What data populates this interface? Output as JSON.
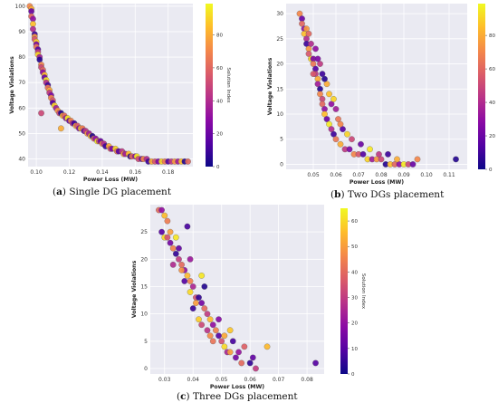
{
  "colors": {
    "panel_bg": "#eaeaf2",
    "grid": "#ffffff",
    "colormap": [
      "#0d0887",
      "#5302a3",
      "#8b0aa5",
      "#b83289",
      "#db5c68",
      "#f48849",
      "#febd2a",
      "#f0f921"
    ],
    "marker_edge": "#555555"
  },
  "captions": [
    {
      "letter": "a",
      "text": "Single DG placement"
    },
    {
      "letter": "b",
      "text": "Two DGs placement"
    },
    {
      "letter": "c",
      "text": "Three DGs placement"
    }
  ],
  "chart_data": [
    {
      "type": "scatter",
      "title": "",
      "xlabel": "Power Loss (MW)",
      "ylabel": "Voltage Violations",
      "colorbar_label": "Solution Index",
      "xlim": [
        0.095,
        0.195
      ],
      "ylim": [
        37,
        101
      ],
      "xticks": [
        0.1,
        0.12,
        0.14,
        0.16,
        0.18
      ],
      "xtick_labels": [
        "0.10",
        "0.12",
        "0.14",
        "0.16",
        "0.18"
      ],
      "yticks": [
        40,
        50,
        60,
        70,
        80,
        90,
        100
      ],
      "yticks_labels": [
        "40",
        "50",
        "60",
        "70",
        "80",
        "90",
        "100"
      ],
      "cbar_ticks": [
        0,
        20,
        40,
        60,
        80
      ],
      "cbar_max": 99,
      "grid": true,
      "points": [
        [
          0.096,
          100,
          70
        ],
        [
          0.097,
          99,
          80
        ],
        [
          0.097,
          98,
          20
        ],
        [
          0.097,
          96,
          60
        ],
        [
          0.098,
          95,
          30
        ],
        [
          0.098,
          93,
          85
        ],
        [
          0.098,
          91,
          40
        ],
        [
          0.099,
          89,
          10
        ],
        [
          0.099,
          88,
          75
        ],
        [
          0.099,
          87,
          55
        ],
        [
          0.1,
          86,
          88
        ],
        [
          0.1,
          85,
          25
        ],
        [
          0.1,
          84,
          65
        ],
        [
          0.101,
          83,
          15
        ],
        [
          0.101,
          82,
          45
        ],
        [
          0.101,
          81,
          90
        ],
        [
          0.102,
          80,
          35
        ],
        [
          0.102,
          79,
          5
        ],
        [
          0.103,
          77,
          70
        ],
        [
          0.103,
          76,
          50
        ],
        [
          0.104,
          75,
          60
        ],
        [
          0.104,
          74,
          30
        ],
        [
          0.105,
          73,
          85
        ],
        [
          0.105,
          72,
          20
        ],
        [
          0.106,
          71,
          95
        ],
        [
          0.106,
          70,
          40
        ],
        [
          0.107,
          69,
          10
        ],
        [
          0.107,
          68,
          65
        ],
        [
          0.108,
          67,
          80
        ],
        [
          0.108,
          66,
          45
        ],
        [
          0.109,
          65,
          25
        ],
        [
          0.109,
          64,
          70
        ],
        [
          0.11,
          63,
          55
        ],
        [
          0.11,
          62,
          15
        ],
        [
          0.111,
          61,
          90
        ],
        [
          0.112,
          60,
          35
        ],
        [
          0.113,
          59,
          75
        ],
        [
          0.114,
          58,
          50
        ],
        [
          0.115,
          58,
          5
        ],
        [
          0.116,
          57,
          85
        ],
        [
          0.117,
          57,
          60
        ],
        [
          0.118,
          56,
          30
        ],
        [
          0.119,
          56,
          95
        ],
        [
          0.12,
          55,
          20
        ],
        [
          0.121,
          55,
          70
        ],
        [
          0.122,
          54,
          40
        ],
        [
          0.123,
          54,
          10
        ],
        [
          0.124,
          53,
          80
        ],
        [
          0.125,
          53,
          55
        ],
        [
          0.126,
          52,
          25
        ],
        [
          0.127,
          52,
          90
        ],
        [
          0.128,
          52,
          65
        ],
        [
          0.129,
          51,
          15
        ],
        [
          0.13,
          51,
          45
        ],
        [
          0.131,
          50,
          75
        ],
        [
          0.132,
          50,
          35
        ],
        [
          0.133,
          49,
          85
        ],
        [
          0.134,
          49,
          5
        ],
        [
          0.135,
          48,
          60
        ],
        [
          0.136,
          48,
          30
        ],
        [
          0.137,
          47,
          95
        ],
        [
          0.138,
          47,
          50
        ],
        [
          0.139,
          47,
          20
        ],
        [
          0.14,
          46,
          70
        ],
        [
          0.141,
          46,
          40
        ],
        [
          0.142,
          45,
          10
        ],
        [
          0.144,
          45,
          80
        ],
        [
          0.145,
          44,
          55
        ],
        [
          0.146,
          44,
          25
        ],
        [
          0.148,
          44,
          90
        ],
        [
          0.149,
          43,
          65
        ],
        [
          0.15,
          43,
          15
        ],
        [
          0.152,
          43,
          45
        ],
        [
          0.153,
          42,
          75
        ],
        [
          0.154,
          42,
          35
        ],
        [
          0.156,
          42,
          85
        ],
        [
          0.157,
          41,
          5
        ],
        [
          0.158,
          41,
          60
        ],
        [
          0.16,
          41,
          30
        ],
        [
          0.161,
          41,
          95
        ],
        [
          0.162,
          40,
          50
        ],
        [
          0.164,
          40,
          20
        ],
        [
          0.165,
          40,
          70
        ],
        [
          0.167,
          40,
          40
        ],
        [
          0.168,
          39,
          10
        ],
        [
          0.17,
          39,
          80
        ],
        [
          0.172,
          39,
          55
        ],
        [
          0.174,
          39,
          25
        ],
        [
          0.176,
          39,
          90
        ],
        [
          0.178,
          39,
          65
        ],
        [
          0.18,
          39,
          15
        ],
        [
          0.182,
          39,
          45
        ],
        [
          0.184,
          39,
          75
        ],
        [
          0.186,
          39,
          35
        ],
        [
          0.188,
          39,
          85
        ],
        [
          0.19,
          39,
          5
        ],
        [
          0.192,
          39,
          60
        ],
        [
          0.103,
          58,
          50
        ],
        [
          0.115,
          52,
          80
        ]
      ]
    },
    {
      "type": "scatter",
      "title": "",
      "xlabel": "Power Loss (MW)",
      "ylabel": "Voltage Violations",
      "colorbar_label": "Solution Index",
      "xlim": [
        0.038,
        0.118
      ],
      "ylim": [
        -1,
        32
      ],
      "xticks": [
        0.05,
        0.06,
        0.07,
        0.08,
        0.09,
        0.1,
        0.11
      ],
      "xtick_labels": [
        "0.05",
        "0.06",
        "0.07",
        "0.08",
        "0.09",
        "0.10",
        "0.11"
      ],
      "yticks": [
        0,
        5,
        10,
        15,
        20,
        25,
        30
      ],
      "yticks_labels": [
        "0",
        "5",
        "10",
        "15",
        "20",
        "25",
        "30"
      ],
      "cbar_ticks": [
        0,
        20,
        40,
        60,
        80
      ],
      "cbar_max": 99,
      "grid": true,
      "points": [
        [
          0.044,
          30,
          70
        ],
        [
          0.045,
          29,
          20
        ],
        [
          0.045,
          28,
          60
        ],
        [
          0.046,
          27,
          30
        ],
        [
          0.046,
          26,
          85
        ],
        [
          0.047,
          25,
          40
        ],
        [
          0.047,
          24,
          10
        ],
        [
          0.048,
          23,
          75
        ],
        [
          0.048,
          22,
          55
        ],
        [
          0.049,
          21,
          90
        ],
        [
          0.05,
          21,
          25
        ],
        [
          0.05,
          20,
          65
        ],
        [
          0.051,
          19,
          15
        ],
        [
          0.051,
          18,
          45
        ],
        [
          0.052,
          17,
          80
        ],
        [
          0.052,
          16,
          35
        ],
        [
          0.053,
          15,
          5
        ],
        [
          0.053,
          14,
          70
        ],
        [
          0.054,
          13,
          50
        ],
        [
          0.054,
          12,
          60
        ],
        [
          0.055,
          11,
          30
        ],
        [
          0.055,
          10,
          85
        ],
        [
          0.056,
          9,
          20
        ],
        [
          0.057,
          8,
          95
        ],
        [
          0.058,
          7,
          40
        ],
        [
          0.059,
          6,
          10
        ],
        [
          0.06,
          5,
          65
        ],
        [
          0.062,
          4,
          80
        ],
        [
          0.064,
          3,
          45
        ],
        [
          0.066,
          3,
          25
        ],
        [
          0.068,
          2,
          70
        ],
        [
          0.07,
          2,
          55
        ],
        [
          0.072,
          2,
          15
        ],
        [
          0.074,
          1,
          90
        ],
        [
          0.076,
          1,
          35
        ],
        [
          0.078,
          1,
          75
        ],
        [
          0.08,
          1,
          50
        ],
        [
          0.082,
          0,
          5
        ],
        [
          0.084,
          0,
          85
        ],
        [
          0.086,
          0,
          60
        ],
        [
          0.088,
          0,
          30
        ],
        [
          0.09,
          0,
          95
        ],
        [
          0.092,
          0,
          50
        ],
        [
          0.094,
          0,
          20
        ],
        [
          0.096,
          1,
          70
        ],
        [
          0.113,
          1,
          5
        ],
        [
          0.053,
          20,
          45
        ],
        [
          0.056,
          16,
          80
        ],
        [
          0.058,
          12,
          30
        ],
        [
          0.061,
          9,
          65
        ],
        [
          0.063,
          7,
          15
        ],
        [
          0.065,
          6,
          90
        ],
        [
          0.049,
          24,
          40
        ],
        [
          0.047,
          27,
          75
        ],
        [
          0.05,
          18,
          55
        ],
        [
          0.052,
          21,
          25
        ],
        [
          0.054,
          18,
          10
        ],
        [
          0.057,
          14,
          85
        ],
        [
          0.06,
          11,
          35
        ],
        [
          0.062,
          8,
          70
        ],
        [
          0.067,
          5,
          50
        ],
        [
          0.071,
          4,
          20
        ],
        [
          0.075,
          3,
          95
        ],
        [
          0.079,
          2,
          45
        ],
        [
          0.083,
          2,
          10
        ],
        [
          0.087,
          1,
          80
        ],
        [
          0.048,
          26,
          60
        ],
        [
          0.051,
          23,
          30
        ],
        [
          0.055,
          17,
          5
        ],
        [
          0.059,
          13,
          90
        ]
      ]
    },
    {
      "type": "scatter",
      "title": "",
      "xlabel": "Power Loss (MW)",
      "ylabel": "Voltage Violations",
      "colorbar_label": "Solution Index",
      "xlim": [
        0.025,
        0.086
      ],
      "ylim": [
        -1,
        30
      ],
      "xticks": [
        0.03,
        0.04,
        0.05,
        0.06,
        0.07,
        0.08
      ],
      "xtick_labels": [
        "0.03",
        "0.04",
        "0.05",
        "0.06",
        "0.07",
        "0.08"
      ],
      "yticks": [
        0,
        5,
        10,
        15,
        20,
        25
      ],
      "yticks_labels": [
        "0",
        "5",
        "10",
        "15",
        "20",
        "25"
      ],
      "cbar_ticks": [
        0,
        10,
        20,
        30,
        40,
        50,
        60
      ],
      "cbar_max": 65,
      "grid": true,
      "points": [
        [
          0.028,
          29,
          40
        ],
        [
          0.029,
          29,
          20
        ],
        [
          0.03,
          28,
          55
        ],
        [
          0.029,
          25,
          10
        ],
        [
          0.03,
          24,
          60
        ],
        [
          0.031,
          24,
          35
        ],
        [
          0.032,
          25,
          50
        ],
        [
          0.032,
          23,
          15
        ],
        [
          0.033,
          22,
          45
        ],
        [
          0.034,
          21,
          5
        ],
        [
          0.035,
          20,
          30
        ],
        [
          0.034,
          24,
          62
        ],
        [
          0.036,
          19,
          40
        ],
        [
          0.037,
          18,
          20
        ],
        [
          0.038,
          17,
          55
        ],
        [
          0.037,
          16,
          10
        ],
        [
          0.039,
          16,
          45
        ],
        [
          0.04,
          15,
          25
        ],
        [
          0.039,
          14,
          60
        ],
        [
          0.041,
          13,
          35
        ],
        [
          0.042,
          13,
          5
        ],
        [
          0.041,
          12,
          50
        ],
        [
          0.043,
          12,
          15
        ],
        [
          0.044,
          11,
          40
        ],
        [
          0.045,
          10,
          30
        ],
        [
          0.046,
          9,
          55
        ],
        [
          0.047,
          8,
          20
        ],
        [
          0.048,
          7,
          45
        ],
        [
          0.049,
          6,
          10
        ],
        [
          0.05,
          5,
          35
        ],
        [
          0.051,
          4,
          60
        ],
        [
          0.052,
          3,
          25
        ],
        [
          0.053,
          3,
          50
        ],
        [
          0.055,
          2,
          15
        ],
        [
          0.057,
          1,
          40
        ],
        [
          0.06,
          1,
          5
        ],
        [
          0.062,
          0,
          30
        ],
        [
          0.066,
          4,
          55
        ],
        [
          0.083,
          1,
          10
        ],
        [
          0.038,
          26,
          8
        ],
        [
          0.043,
          17,
          62
        ],
        [
          0.044,
          15,
          3
        ],
        [
          0.035,
          22,
          12
        ],
        [
          0.036,
          18,
          48
        ],
        [
          0.039,
          20,
          22
        ],
        [
          0.042,
          9,
          58
        ],
        [
          0.045,
          7,
          28
        ],
        [
          0.047,
          5,
          42
        ],
        [
          0.049,
          9,
          18
        ],
        [
          0.051,
          6,
          52
        ],
        [
          0.054,
          5,
          8
        ],
        [
          0.058,
          4,
          38
        ],
        [
          0.061,
          2,
          12
        ],
        [
          0.031,
          27,
          44
        ],
        [
          0.033,
          19,
          26
        ],
        [
          0.04,
          11,
          6
        ],
        [
          0.043,
          8,
          33
        ],
        [
          0.046,
          6,
          47
        ],
        [
          0.053,
          7,
          57
        ],
        [
          0.056,
          3,
          21
        ]
      ]
    }
  ]
}
